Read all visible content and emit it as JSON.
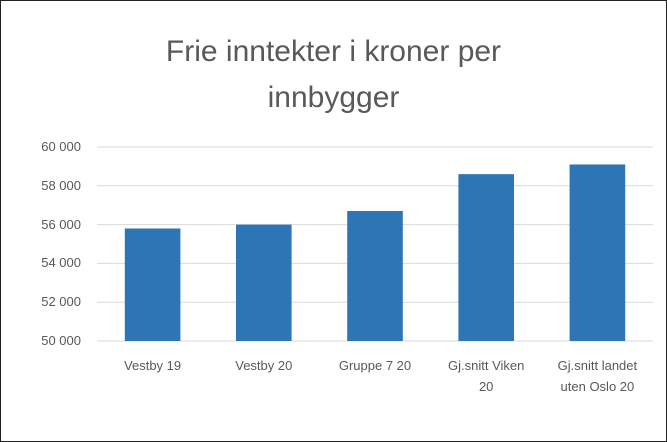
{
  "chart_data": {
    "type": "bar",
    "title": "Frie inntekter i kroner per innbygger",
    "categories": [
      "Vestby 19",
      "Vestby 20",
      "Gruppe 7 20",
      "Gj.snitt Viken 20",
      "Gj.snitt landet uten Oslo 20"
    ],
    "values": [
      55800,
      56000,
      56700,
      58600,
      59100
    ],
    "color": "#2e75b6",
    "ylim": [
      50000,
      60000
    ],
    "yticks": [
      {
        "value": 50000,
        "label": "50 000"
      },
      {
        "value": 52000,
        "label": "52 000"
      },
      {
        "value": 54000,
        "label": "54 000"
      },
      {
        "value": 56000,
        "label": "56 000"
      },
      {
        "value": 58000,
        "label": "58 000"
      },
      {
        "value": 60000,
        "label": "60 000"
      }
    ],
    "grid": true
  }
}
